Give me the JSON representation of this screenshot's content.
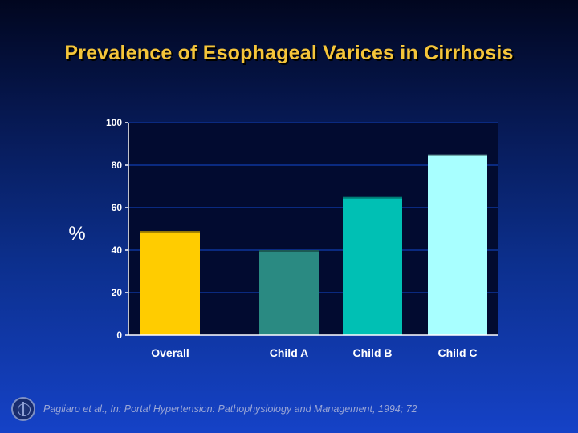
{
  "title": "Prevalence of Esophageal Varices in Cirrhosis",
  "citation": "Pagliaro et al., In: Portal Hypertension: Pathophysiology and Management, 1994; 72",
  "chart_data": {
    "type": "bar",
    "title": "Prevalence of Esophageal Varices in Cirrhosis",
    "xlabel": "",
    "ylabel": "%",
    "categories": [
      "Overall",
      "Child A",
      "Child B",
      "Child C"
    ],
    "values": [
      49,
      40,
      65,
      85
    ],
    "ylim": [
      0,
      100
    ],
    "yticks": [
      0,
      20,
      40,
      60,
      80,
      100
    ],
    "grid": true,
    "legend": "none",
    "colors": {
      "Overall": "#ffcc00",
      "Child A": "#2a8a82",
      "Child B": "#00c0b4",
      "Child C": "#a8ffff"
    },
    "plot_background": "#020b30",
    "grid_color": "#0a2a80"
  }
}
